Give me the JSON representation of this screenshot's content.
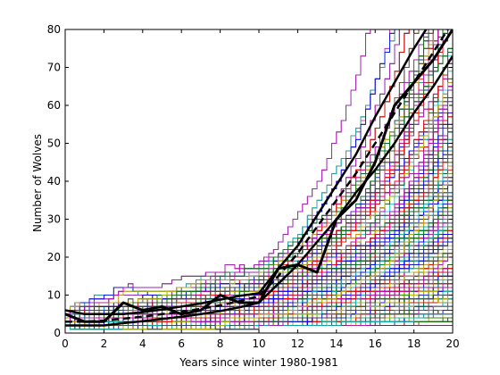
{
  "chart_data": {
    "type": "line",
    "title": "",
    "xlabel": "Years since winter 1980-1981",
    "ylabel": "Number of Wolves",
    "xlim": [
      0,
      20
    ],
    "ylim": [
      0,
      80
    ],
    "xticks": [
      0,
      2,
      4,
      6,
      8,
      10,
      12,
      14,
      16,
      18,
      20
    ],
    "yticks": [
      0,
      10,
      20,
      30,
      40,
      50,
      60,
      70,
      80
    ],
    "grid": false,
    "legend": "none",
    "simulation_colors": [
      "#0000ff",
      "#008000",
      "#ff0000",
      "#00bfbf",
      "#bf00bf",
      "#bfbf00",
      "#404040"
    ],
    "simulation_runs": 700,
    "observed": {
      "x": [
        0,
        1,
        2,
        3,
        4,
        5,
        6,
        7,
        8,
        9,
        10,
        11,
        12,
        13,
        14,
        15,
        16,
        17,
        18,
        19,
        20
      ],
      "values": [
        5,
        3,
        3,
        8,
        6,
        7,
        5,
        6,
        10,
        8,
        8,
        17,
        18,
        16,
        30,
        35,
        45,
        60,
        66,
        72,
        80
      ]
    },
    "mean": {
      "x": [
        0,
        1,
        2,
        3,
        4,
        5,
        6,
        7,
        8,
        9,
        10,
        11,
        12,
        13,
        14,
        15,
        16,
        17,
        18,
        19,
        20
      ],
      "values": [
        3,
        3,
        3.3,
        3.8,
        4.3,
        5,
        5.6,
        6.4,
        7.3,
        8.4,
        9.7,
        15,
        21,
        28,
        35,
        42,
        50,
        58,
        66,
        74,
        82
      ]
    },
    "bound_upper": {
      "x": [
        0,
        1,
        2,
        3,
        4,
        5,
        6,
        7,
        8,
        9,
        10,
        11,
        12,
        13,
        14,
        15,
        16,
        17,
        18,
        19,
        20
      ],
      "values": [
        6,
        5,
        5,
        5,
        5.5,
        6.2,
        7,
        7.8,
        8.8,
        9.8,
        10.5,
        17,
        23,
        31,
        39,
        47,
        57,
        66,
        75,
        83,
        92
      ]
    },
    "bound_lower": {
      "x": [
        0,
        1,
        2,
        3,
        4,
        5,
        6,
        7,
        8,
        9,
        10,
        11,
        12,
        13,
        14,
        15,
        16,
        17,
        18,
        19,
        20
      ],
      "values": [
        2,
        2,
        2,
        2.6,
        3.1,
        3.7,
        4.3,
        5,
        5.8,
        6.8,
        8,
        13,
        18,
        24,
        30,
        37,
        43,
        50,
        58,
        65,
        73
      ]
    }
  }
}
